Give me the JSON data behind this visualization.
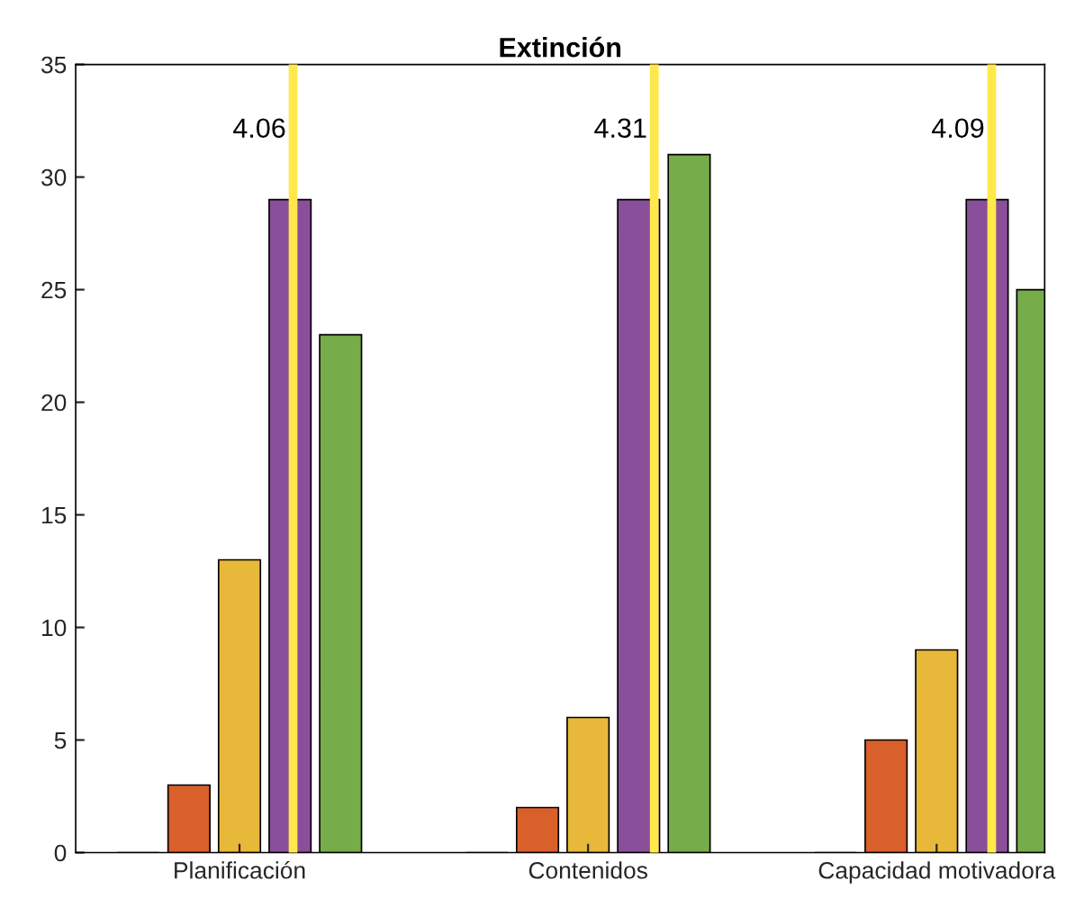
{
  "chart_data": {
    "type": "bar",
    "title": "Extinción",
    "categories": [
      "Planificación",
      "Contenidos",
      "Capacidad motivadora"
    ],
    "series": [
      {
        "color": "#0072bd",
        "values": [
          0,
          0,
          0
        ]
      },
      {
        "color": "#d95f2b",
        "values": [
          3,
          2,
          5
        ]
      },
      {
        "color": "#e8b83a",
        "values": [
          13,
          6,
          9
        ]
      },
      {
        "color": "#8a4f9a",
        "values": [
          29,
          29,
          29
        ]
      },
      {
        "color": "#77ac4a",
        "values": [
          23,
          31,
          25
        ]
      }
    ],
    "ref_lines": [
      {
        "axis": "x",
        "value": "Planificación",
        "label": "4.06",
        "color": "#ffe84a"
      },
      {
        "axis": "x",
        "value": "Contenidos",
        "label": "4.31",
        "color": "#ffe84a"
      },
      {
        "axis": "x",
        "value": "Capacidad motivadora",
        "label": "4.09",
        "color": "#ffe84a"
      }
    ],
    "ylim": [
      0,
      35
    ],
    "yticks": [
      0,
      5,
      10,
      15,
      20,
      25,
      30,
      35
    ],
    "grid": false
  }
}
